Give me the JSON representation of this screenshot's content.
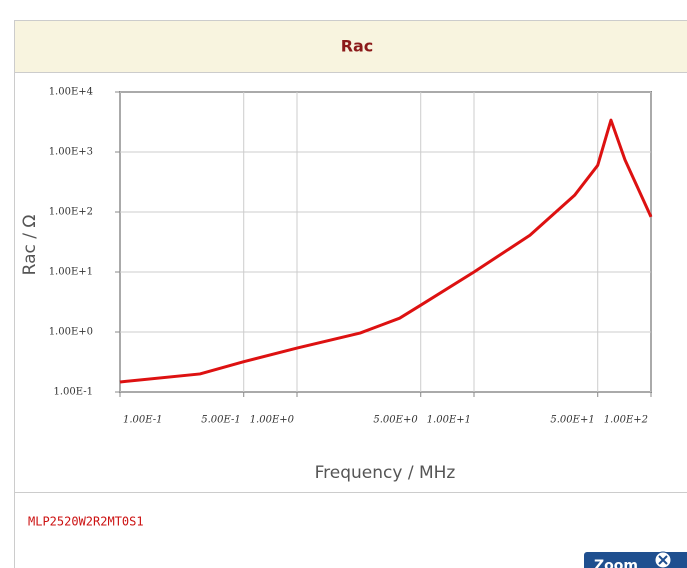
{
  "chart_data": {
    "type": "line",
    "title": "Rac",
    "x_label": "Frequency / MHz",
    "y_label": "Rac / Ω",
    "x": [
      0.1,
      0.283,
      0.5,
      1,
      2.27,
      3.8,
      5,
      10,
      20.7,
      37,
      50,
      59.4,
      71.3,
      100
    ],
    "series": [
      {
        "name": "MLP2520W2R2MT0S1",
        "color": "#dd1111",
        "values": [
          0.147,
          0.2,
          0.32,
          0.54,
          0.96,
          1.7,
          2.8,
          10,
          41,
          190,
          600,
          3400,
          740,
          83
        ]
      }
    ],
    "xlim": [
      0.1,
      100
    ],
    "ylim": [
      0.1,
      10000
    ],
    "xlog": true,
    "ylog": true,
    "grid": true,
    "xticks": [
      {
        "value": 0.1,
        "label": "1.00E-1"
      },
      {
        "value": 0.5,
        "label": "5.00E-1"
      },
      {
        "value": 1,
        "label": "1.00E+0"
      },
      {
        "value": 5,
        "label": "5.00E+0"
      },
      {
        "value": 10,
        "label": "1.00E+1"
      },
      {
        "value": 50,
        "label": "5.00E+1"
      },
      {
        "value": 100,
        "label": "1.00E+2"
      }
    ],
    "yticks": [
      {
        "value": 0.1,
        "label": "1.00E-1"
      },
      {
        "value": 1,
        "label": "1.00E+0"
      },
      {
        "value": 10,
        "label": "1.00E+1"
      },
      {
        "value": 100,
        "label": "1.00E+2"
      },
      {
        "value": 1000,
        "label": "1.00E+3"
      },
      {
        "value": 10000,
        "label": "1.00E+4"
      }
    ]
  },
  "part_number": "MLP2520W2R2MT0S1",
  "zoom_button": "Zoom"
}
